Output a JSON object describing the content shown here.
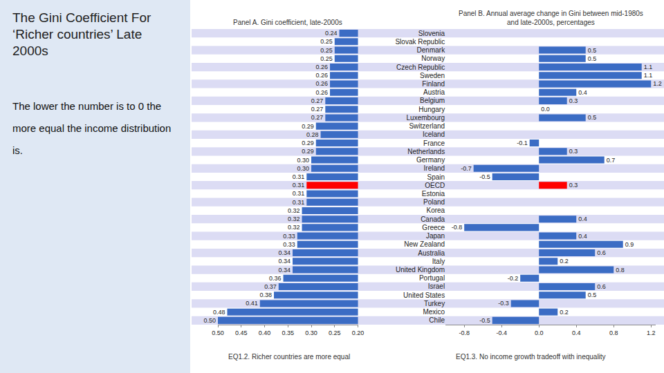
{
  "heading": "The Gini Coefficient For ‘Richer countries’ Late 2000s",
  "note": "The lower the number is to 0 the more equal the income distribution is.",
  "chart_data": [
    {
      "type": "bar",
      "orientation": "horizontal",
      "title": "Panel A. Gini coefficient, late-2000s",
      "caption": "EQ1.2. Richer countries are more equal",
      "categories": [
        "Slovenia",
        "Slovak Republic",
        "Denmark",
        "Norway",
        "Czech Republic",
        "Sweden",
        "Finland",
        "Austria",
        "Belgium",
        "Hungary",
        "Luxembourg",
        "Switzerland",
        "Iceland",
        "France",
        "Netherlands",
        "Germany",
        "Ireland",
        "Spain",
        "OECD",
        "Estonia",
        "Poland",
        "Korea",
        "Canada",
        "Greece",
        "Japan",
        "New Zealand",
        "Australia",
        "Italy",
        "United Kingdom",
        "Portugal",
        "Israel",
        "United States",
        "Turkey",
        "Mexico",
        "Chile"
      ],
      "values": [
        0.24,
        0.25,
        0.25,
        0.25,
        0.26,
        0.26,
        0.26,
        0.26,
        0.27,
        0.27,
        0.27,
        0.29,
        0.28,
        0.29,
        0.29,
        0.3,
        0.3,
        0.31,
        0.31,
        0.31,
        0.31,
        0.32,
        0.32,
        0.32,
        0.33,
        0.33,
        0.34,
        0.34,
        0.34,
        0.36,
        0.37,
        0.38,
        0.41,
        0.48,
        0.5
      ],
      "value_labels": [
        "0.24",
        "0.25",
        "0.25",
        "0.25",
        "0.26",
        "0.26",
        "0.26",
        "0.26",
        "0.27",
        "0.27",
        "0.27",
        "0.29",
        "0.28",
        "0.29",
        "0.29",
        "0.30",
        "0.30",
        "0.31",
        "0.31",
        "0.31",
        "0.31",
        "0.32",
        "0.32",
        "0.32",
        "0.33",
        "0.33",
        "0.34",
        "0.34",
        "0.34",
        "0.36",
        "0.37",
        "0.38",
        "0.41",
        "0.48",
        "0.50"
      ],
      "colors": [
        "#3b6cc4",
        "#3b6cc4",
        "#3b6cc4",
        "#3b6cc4",
        "#3b6cc4",
        "#3b6cc4",
        "#3b6cc4",
        "#3b6cc4",
        "#3b6cc4",
        "#3b6cc4",
        "#3b6cc4",
        "#3b6cc4",
        "#3b6cc4",
        "#3b6cc4",
        "#3b6cc4",
        "#3b6cc4",
        "#3b6cc4",
        "#3b6cc4",
        "#ff0000",
        "#3b6cc4",
        "#3b6cc4",
        "#3b6cc4",
        "#3b6cc4",
        "#3b6cc4",
        "#3b6cc4",
        "#3b6cc4",
        "#3b6cc4",
        "#3b6cc4",
        "#3b6cc4",
        "#3b6cc4",
        "#3b6cc4",
        "#3b6cc4",
        "#3b6cc4",
        "#3b6cc4",
        "#3b6cc4"
      ],
      "xlim": [
        0.5,
        0.2
      ],
      "xticks": [
        {
          "value": 0.5,
          "label": "0.50"
        },
        0.45,
        {
          "value": 0.4,
          "label": "0.40"
        },
        0.35,
        {
          "value": 0.3,
          "label": "0.30"
        },
        0.25,
        {
          "value": 0.2,
          "label": "0.20"
        }
      ],
      "data_labels": true,
      "grid": false,
      "tick_labels": "x"
    },
    {
      "type": "bar",
      "orientation": "horizontal",
      "title": "Panel B. Annual average change in Gini between mid-1980s and late-2000s, percentages",
      "caption": "EQ1.3. No income growth tradeoff with inequality",
      "categories": [
        "Slovenia",
        "Slovak Republic",
        "Denmark",
        "Norway",
        "Czech Republic",
        "Sweden",
        "Finland",
        "Austria",
        "Belgium",
        "Hungary",
        "Luxembourg",
        "Switzerland",
        "Iceland",
        "France",
        "Netherlands",
        "Germany",
        "Ireland",
        "Spain",
        "OECD",
        "Estonia",
        "Poland",
        "Korea",
        "Canada",
        "Greece",
        "Japan",
        "New Zealand",
        "Australia",
        "Italy",
        "United Kingdom",
        "Portugal",
        "Israel",
        "United States",
        "Turkey",
        "Mexico",
        "Chile"
      ],
      "values": [
        null,
        null,
        0.5,
        0.5,
        1.1,
        1.1,
        1.2,
        0.4,
        0.3,
        0.0,
        0.5,
        null,
        null,
        -0.1,
        0.3,
        0.7,
        -0.7,
        -0.5,
        0.3,
        null,
        null,
        null,
        0.4,
        -0.8,
        0.4,
        0.9,
        0.6,
        0.2,
        0.8,
        -0.2,
        0.6,
        0.5,
        -0.3,
        0.2,
        -0.5
      ],
      "value_labels": [
        null,
        null,
        "0.5",
        "0.5",
        "1.1",
        "1.1",
        "1.2",
        "0.4",
        "0.3",
        "0.0",
        "0.5",
        null,
        null,
        "-0.1",
        "0.3",
        "0.7",
        "-0.7",
        "-0.5",
        "0.3",
        null,
        null,
        null,
        "0.4",
        "-0.8",
        "0.4",
        "0.9",
        "0.6",
        "0.2",
        "0.8",
        "-0.2",
        "0.6",
        "0.5",
        "-0.3",
        "0.2",
        "-0.5"
      ],
      "colors": [
        "#3b6cc4",
        "#3b6cc4",
        "#3b6cc4",
        "#3b6cc4",
        "#3b6cc4",
        "#3b6cc4",
        "#3b6cc4",
        "#3b6cc4",
        "#3b6cc4",
        "#3b6cc4",
        "#3b6cc4",
        "#3b6cc4",
        "#3b6cc4",
        "#3b6cc4",
        "#3b6cc4",
        "#3b6cc4",
        "#3b6cc4",
        "#3b6cc4",
        "#ff0000",
        "#3b6cc4",
        "#3b6cc4",
        "#3b6cc4",
        "#3b6cc4",
        "#3b6cc4",
        "#3b6cc4",
        "#3b6cc4",
        "#3b6cc4",
        "#3b6cc4",
        "#3b6cc4",
        "#3b6cc4",
        "#3b6cc4",
        "#3b6cc4",
        "#3b6cc4",
        "#3b6cc4",
        "#3b6cc4"
      ],
      "xlim": [
        -1.0,
        1.25
      ],
      "xticks": [
        -0.8,
        -0.4,
        {
          "value": 0,
          "label": "0.0"
        },
        0.4,
        0.8,
        1.2
      ],
      "data_labels": true,
      "grid": false
    }
  ]
}
